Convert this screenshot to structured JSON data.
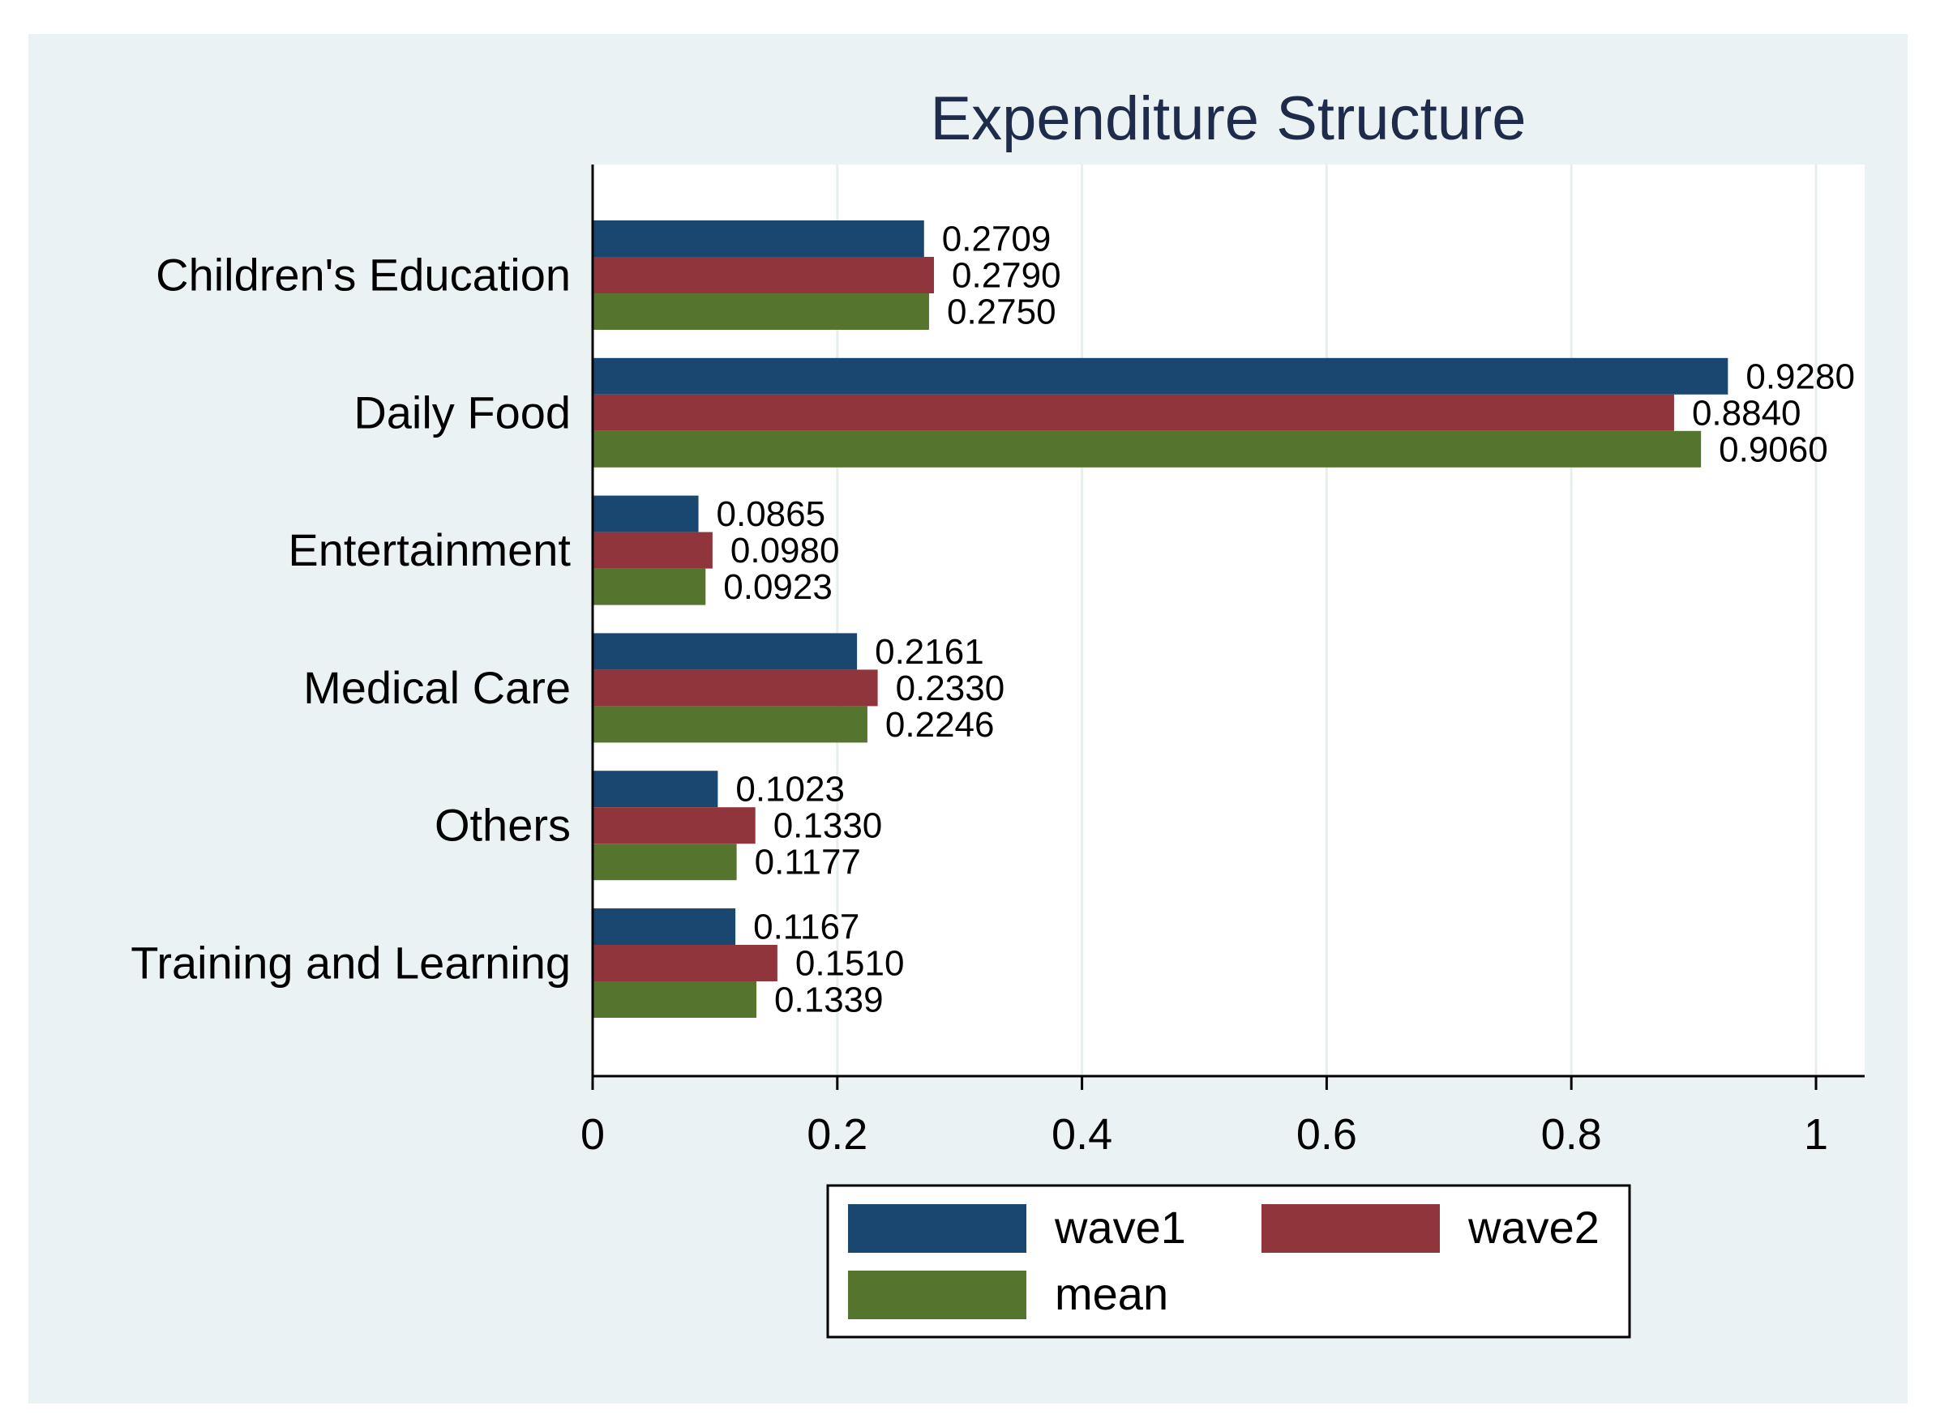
{
  "chart_data": {
    "type": "bar",
    "orientation": "horizontal",
    "title": "Expenditure Structure",
    "xlabel": "",
    "ylabel": "",
    "xlim": [
      0,
      1.04
    ],
    "x_ticks": [
      "0",
      "0.2",
      "0.4",
      "0.6",
      "0.8",
      "1"
    ],
    "grid": true,
    "legend_position": "bottom",
    "categories": [
      "Children's Education",
      "Daily Food",
      "Entertainment",
      "Medical Care",
      "Others",
      "Training and Learning"
    ],
    "series": [
      {
        "name": "wave1",
        "color": "#1a476f",
        "values": [
          0.2709,
          0.928,
          0.0865,
          0.2161,
          0.1023,
          0.1167
        ],
        "labels": [
          "0.2709",
          "0.9280",
          "0.0865",
          "0.2161",
          "0.1023",
          "0.1167"
        ]
      },
      {
        "name": "wave2",
        "color": "#90353b",
        "values": [
          0.279,
          0.884,
          0.098,
          0.233,
          0.133,
          0.151
        ],
        "labels": [
          "0.2790",
          "0.8840",
          "0.0980",
          "0.2330",
          "0.1330",
          "0.1510"
        ]
      },
      {
        "name": "mean",
        "color": "#55752f",
        "values": [
          0.275,
          0.906,
          0.0923,
          0.2246,
          0.1177,
          0.1339
        ],
        "labels": [
          "0.2750",
          "0.9060",
          "0.0923",
          "0.2246",
          "0.1177",
          "0.1339"
        ]
      }
    ],
    "colors": {
      "outer_background": "#eaf2f3",
      "plot_background": "#ffffff",
      "grid": "#e6eef0",
      "title": "#1e2b4a",
      "axis": "#000000"
    }
  }
}
